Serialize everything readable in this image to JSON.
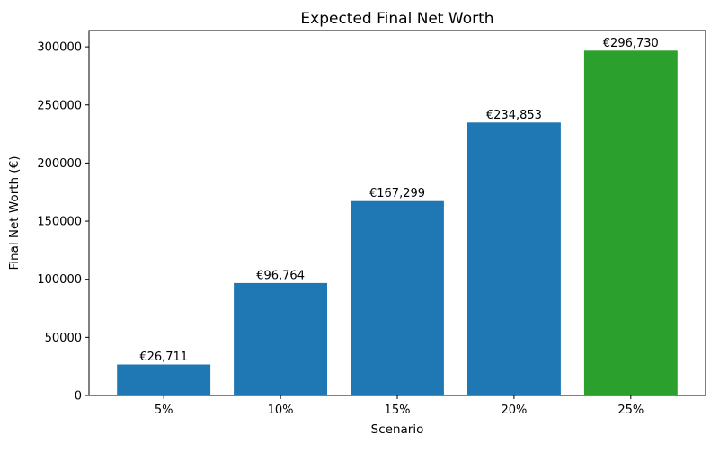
{
  "chart_data": {
    "type": "bar",
    "title": "Expected Final Net Worth",
    "xlabel": "Scenario",
    "ylabel": "Final Net Worth (€)",
    "categories": [
      "5%",
      "10%",
      "15%",
      "20%",
      "25%"
    ],
    "values": [
      26711,
      96764,
      167299,
      234853,
      296730
    ],
    "bar_labels": [
      "€26,711",
      "€96,764",
      "€167,299",
      "€234,853",
      "€296,730"
    ],
    "bar_colors": [
      "#1f77b4",
      "#1f77b4",
      "#1f77b4",
      "#1f77b4",
      "#2ca02c"
    ],
    "yticks": [
      0,
      50000,
      100000,
      150000,
      200000,
      250000,
      300000
    ],
    "ytick_labels": [
      "0",
      "50000",
      "100000",
      "150000",
      "200000",
      "250000",
      "300000"
    ],
    "ylim": [
      0,
      314000
    ],
    "grid": false,
    "legend_position": "none",
    "colors": {
      "bar_blue": "#1f77b4",
      "bar_green": "#2ca02c",
      "axis": "#000000",
      "background": "#ffffff"
    }
  }
}
